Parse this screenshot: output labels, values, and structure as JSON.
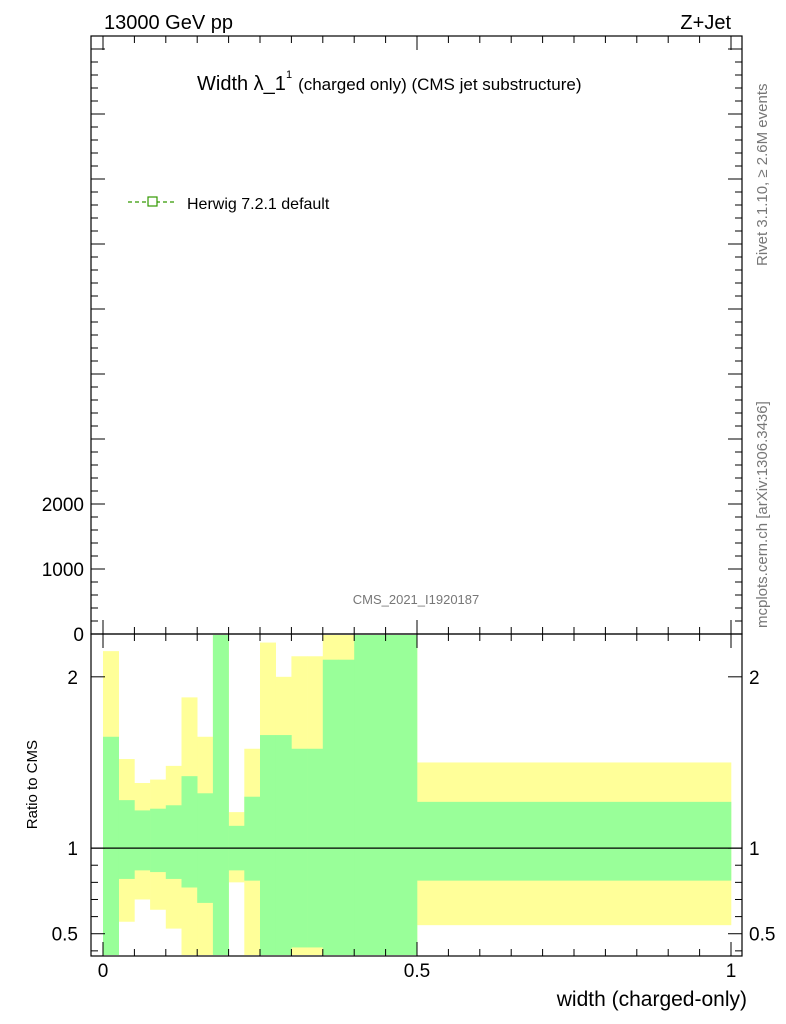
{
  "header": {
    "energy_label": "13000 GeV pp",
    "process_label": "Z+Jet"
  },
  "side": {
    "rivet_label": "Rivet 3.1.10, ≥ 2.6M events",
    "mcplots_label": "mcplots.cern.ch [arXiv:1306.3436]"
  },
  "colors": {
    "band_inner": "#99ff99",
    "band_outer": "#ffff99",
    "herwig": "#339900",
    "axis": "#000000"
  },
  "chart_data": [
    {
      "type": "line",
      "title": "Width λ_1",
      "title_sup": "1",
      "title_rest": "(charged only) (CMS jet substructure)",
      "watermark": "CMS_2021_I1920187",
      "xlim": [
        0,
        1
      ],
      "ylim": [
        0,
        9200
      ],
      "y_ticks": [
        {
          "value": 0,
          "label": "0"
        },
        {
          "value": 1000,
          "label": "1000"
        },
        {
          "value": 2000,
          "label": "2000"
        }
      ],
      "legend": [
        {
          "name": "Herwig 7.2.1 default",
          "style": "dashed-open-square"
        }
      ],
      "series": []
    },
    {
      "type": "area",
      "xlabel": "width (charged-only)",
      "ylabel": "Ratio to CMS",
      "xlim": [
        0,
        1
      ],
      "ylim": [
        0.37,
        2.25
      ],
      "x_ticks": [
        {
          "value": 0,
          "label": "0"
        },
        {
          "value": 0.5,
          "label": "0.5"
        },
        {
          "value": 1,
          "label": "1"
        }
      ],
      "y_ticks": [
        {
          "value": 0.5,
          "label": "0.5"
        },
        {
          "value": 1,
          "label": "1"
        },
        {
          "value": 2,
          "label": "2"
        }
      ],
      "reference_line": 1,
      "bins": [
        {
          "x0": 0.0,
          "x1": 0.025,
          "inner_lo": 0.3,
          "inner_hi": 1.65,
          "outer_lo": 0.3,
          "outer_hi": 2.15
        },
        {
          "x0": 0.025,
          "x1": 0.05,
          "inner_lo": 0.82,
          "inner_hi": 1.28,
          "outer_lo": 0.57,
          "outer_hi": 1.52
        },
        {
          "x0": 0.05,
          "x1": 0.075,
          "inner_lo": 0.87,
          "inner_hi": 1.22,
          "outer_lo": 0.7,
          "outer_hi": 1.38
        },
        {
          "x0": 0.075,
          "x1": 0.1,
          "inner_lo": 0.86,
          "inner_hi": 1.23,
          "outer_lo": 0.64,
          "outer_hi": 1.4
        },
        {
          "x0": 0.1,
          "x1": 0.125,
          "inner_lo": 0.82,
          "inner_hi": 1.25,
          "outer_lo": 0.53,
          "outer_hi": 1.48
        },
        {
          "x0": 0.125,
          "x1": 0.15,
          "inner_lo": 0.77,
          "inner_hi": 1.42,
          "outer_lo": 0.3,
          "outer_hi": 1.88
        },
        {
          "x0": 0.15,
          "x1": 0.175,
          "inner_lo": 0.68,
          "inner_hi": 1.32,
          "outer_lo": 0.3,
          "outer_hi": 1.65
        },
        {
          "x0": 0.175,
          "x1": 0.2,
          "inner_lo": 0.3,
          "inner_hi": 2.3,
          "outer_lo": 0.3,
          "outer_hi": 2.3
        },
        {
          "x0": 0.2,
          "x1": 0.225,
          "inner_lo": 0.87,
          "inner_hi": 1.13,
          "outer_lo": 0.8,
          "outer_hi": 1.21
        },
        {
          "x0": 0.225,
          "x1": 0.25,
          "inner_lo": 0.81,
          "inner_hi": 1.3,
          "outer_lo": 0.3,
          "outer_hi": 1.58
        },
        {
          "x0": 0.25,
          "x1": 0.275,
          "inner_lo": 0.3,
          "inner_hi": 1.66,
          "outer_lo": 0.3,
          "outer_hi": 2.2
        },
        {
          "x0": 0.275,
          "x1": 0.3,
          "inner_lo": 0.3,
          "inner_hi": 1.66,
          "outer_lo": 0.3,
          "outer_hi": 2.0
        },
        {
          "x0": 0.3,
          "x1": 0.325,
          "inner_lo": 0.42,
          "inner_hi": 1.58,
          "outer_lo": 0.36,
          "outer_hi": 2.12
        },
        {
          "x0": 0.325,
          "x1": 0.35,
          "inner_lo": 0.42,
          "inner_hi": 1.58,
          "outer_lo": 0.36,
          "outer_hi": 2.12
        },
        {
          "x0": 0.35,
          "x1": 0.375,
          "inner_lo": 0.3,
          "inner_hi": 2.1,
          "outer_lo": 0.3,
          "outer_hi": 2.3
        },
        {
          "x0": 0.375,
          "x1": 0.4,
          "inner_lo": 0.3,
          "inner_hi": 2.1,
          "outer_lo": 0.3,
          "outer_hi": 2.3
        },
        {
          "x0": 0.4,
          "x1": 0.5,
          "inner_lo": 0.3,
          "inner_hi": 2.3,
          "outer_lo": 0.3,
          "outer_hi": 2.3
        },
        {
          "x0": 0.5,
          "x1": 1.0,
          "inner_lo": 0.81,
          "inner_hi": 1.27,
          "outer_lo": 0.55,
          "outer_hi": 1.5
        }
      ]
    }
  ]
}
